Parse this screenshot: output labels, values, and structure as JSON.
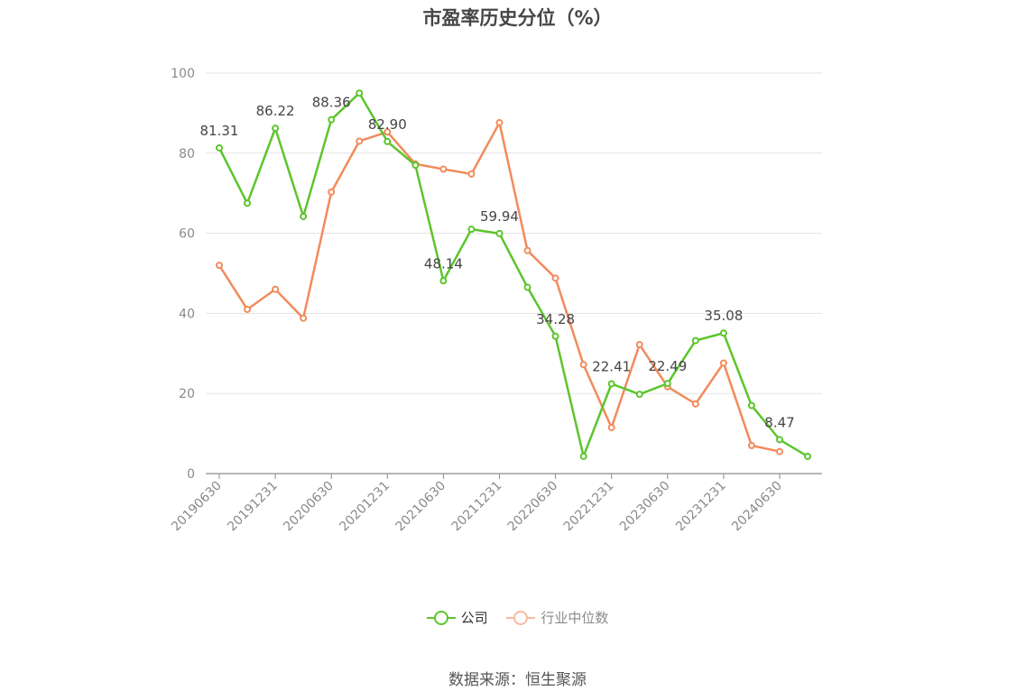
{
  "chart_data": {
    "type": "line",
    "title": "市盈率历史分位（%）",
    "ylim": [
      0,
      100
    ],
    "y_ticks": [
      0,
      20,
      40,
      60,
      80,
      100
    ],
    "grid": true,
    "legend_position": "bottom",
    "x_labels": [
      "20190630",
      "20191231",
      "20200630",
      "20201231",
      "20210630",
      "20211231",
      "20220630",
      "20221231",
      "20230630",
      "20231231",
      "20240630"
    ],
    "series": [
      {
        "name": "公司",
        "color": "#5cc52c",
        "values": [
          81.31,
          67.5,
          86.22,
          64.2,
          88.36,
          95.0,
          82.9,
          77.0,
          48.14,
          61.0,
          59.94,
          46.5,
          34.28,
          4.3,
          22.41,
          19.8,
          22.49,
          33.2,
          35.08,
          17.0,
          8.47,
          4.3
        ],
        "labels": {
          "0": "81.31",
          "2": "86.22",
          "4": "88.36",
          "6": "82.90",
          "8": "48.14",
          "10": "59.94",
          "12": "34.28",
          "14": "22.41",
          "16": "22.49",
          "18": "35.08",
          "20": "8.47"
        }
      },
      {
        "name": "行业中位数",
        "color": "#f28b5b",
        "legend_color": "#f8b9a0",
        "values": [
          52.0,
          41.0,
          46.0,
          38.8,
          70.3,
          83.0,
          85.3,
          77.3,
          76.0,
          74.8,
          87.6,
          55.7,
          48.8,
          27.2,
          11.5,
          32.2,
          21.7,
          17.4,
          27.6,
          7.0,
          5.5
        ]
      }
    ]
  },
  "source": "数据来源：恒生聚源"
}
